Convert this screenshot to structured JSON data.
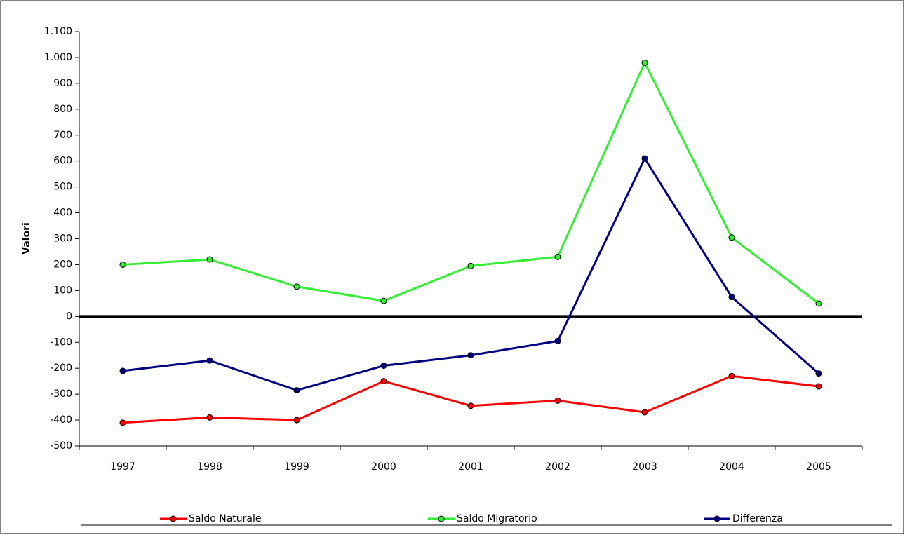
{
  "chart_data": {
    "type": "line",
    "y_label": "Valori",
    "categories": [
      "1997",
      "1998",
      "1999",
      "2000",
      "2001",
      "2002",
      "2003",
      "2004",
      "2005"
    ],
    "series": [
      {
        "name": "Saldo Naturale",
        "color": "#ff0000",
        "values": [
          -410,
          -390,
          -400,
          -250,
          -345,
          -325,
          -370,
          -230,
          -270
        ]
      },
      {
        "name": "Saldo Migratorio",
        "color": "#33ee33",
        "values": [
          200,
          220,
          115,
          60,
          195,
          230,
          980,
          305,
          50
        ]
      },
      {
        "name": "Differenza",
        "color": "#000080",
        "values": [
          -210,
          -170,
          -285,
          -190,
          -150,
          -95,
          610,
          75,
          -220
        ]
      }
    ],
    "ylim": [
      -500,
      1100
    ],
    "yticks": [
      -500,
      -400,
      -300,
      -200,
      -100,
      0,
      100,
      200,
      300,
      400,
      500,
      600,
      700,
      800,
      900,
      {
        "value": 1000,
        "label": "1.000"
      },
      {
        "value": 1100,
        "label": "1.100"
      }
    ],
    "zero_line": true,
    "legend": "bottom"
  }
}
